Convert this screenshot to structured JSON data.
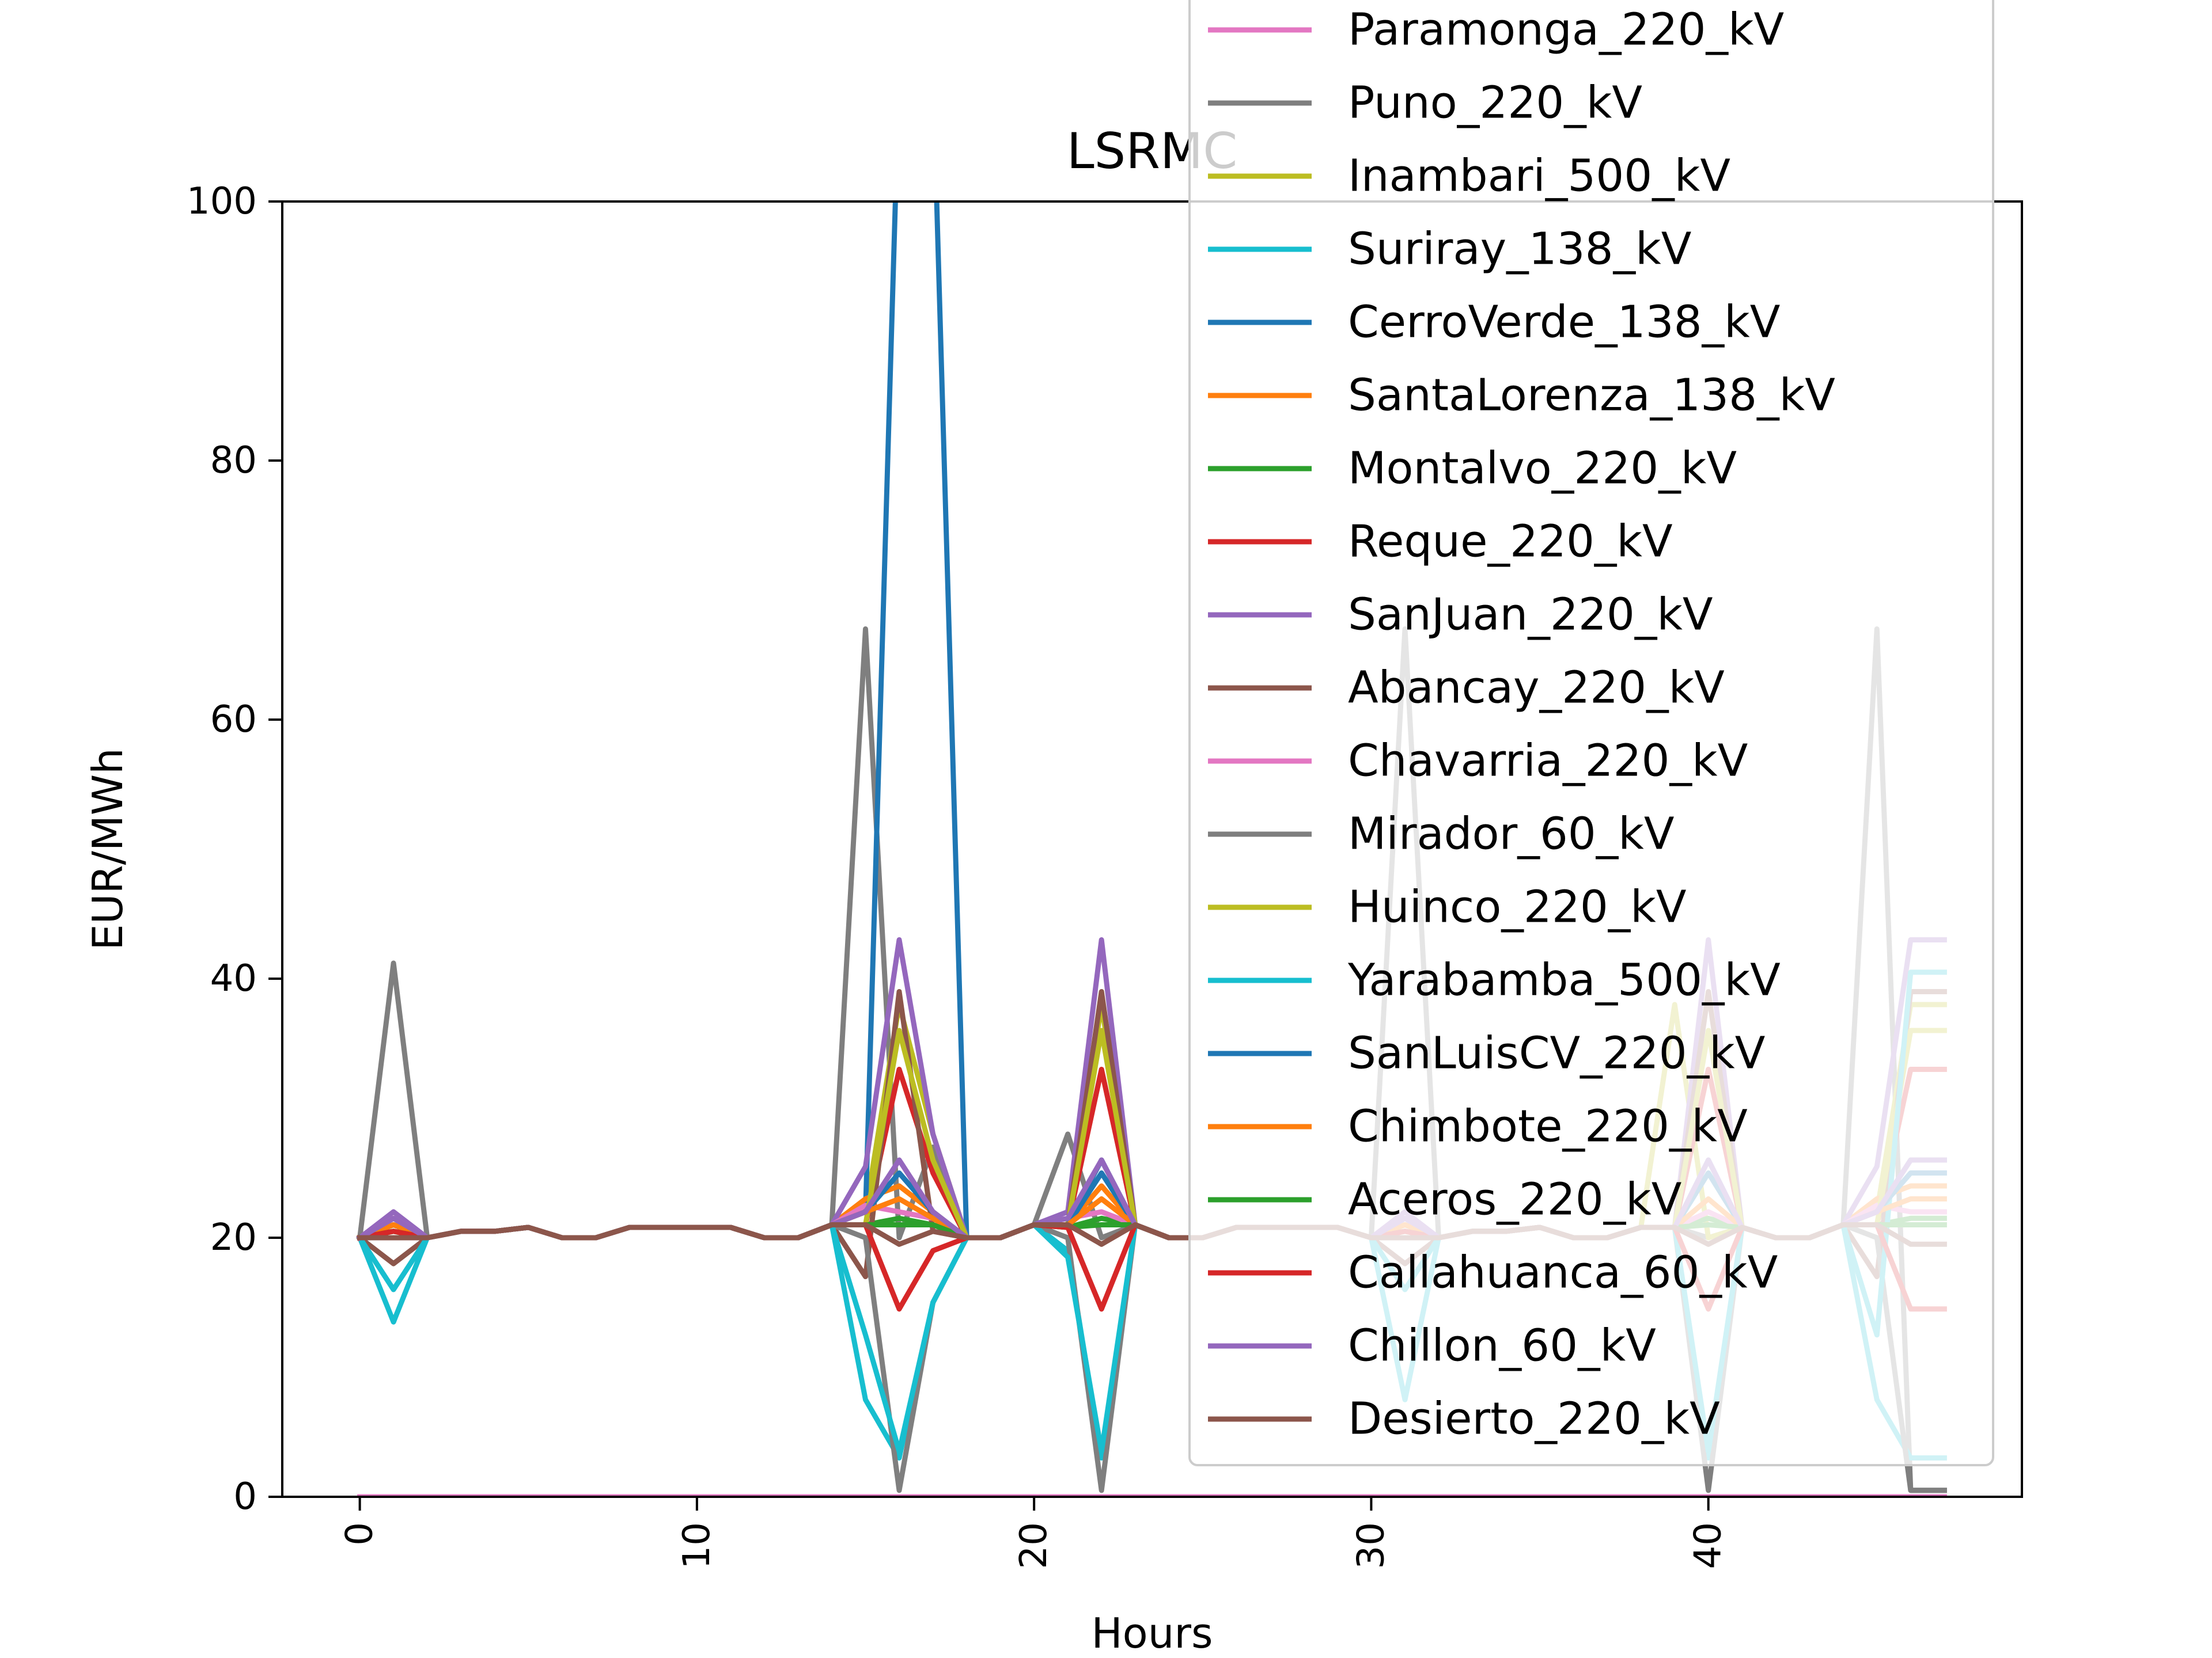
{
  "chart_data": {
    "type": "line",
    "title": "LSRMC",
    "xlabel": "Hours",
    "ylabel": "EUR/MWh",
    "xlim": [
      -2.3,
      49.3
    ],
    "ylim": [
      0,
      100
    ],
    "xticks": [
      0,
      10,
      20,
      30,
      40
    ],
    "yticks": [
      0,
      20,
      40,
      60,
      80,
      100
    ],
    "grid": false,
    "legend_position": "top-right",
    "x": [
      0,
      1,
      2,
      3,
      4,
      5,
      6,
      7,
      8,
      9,
      10,
      11,
      12,
      13,
      14,
      15,
      16,
      17,
      18,
      19,
      20,
      21,
      22,
      23,
      24,
      25,
      26,
      27,
      28,
      29,
      30,
      31,
      32,
      33,
      34,
      35,
      36,
      37,
      38,
      39,
      40,
      41,
      42,
      43,
      44,
      45,
      46,
      47
    ],
    "series": [
      {
        "name": "Paramonga_220_kV",
        "color": "#e377c2",
        "values": [
          0,
          0,
          0,
          0,
          0,
          0,
          0,
          0,
          0,
          0,
          0,
          0,
          0,
          0,
          0,
          0,
          0,
          0,
          0,
          0,
          0,
          0,
          0,
          0,
          0,
          0,
          0,
          0,
          0,
          0,
          0,
          0,
          0,
          0,
          0,
          0,
          0,
          0,
          0,
          0,
          0,
          0,
          0,
          0,
          0,
          0,
          0,
          0
        ]
      },
      {
        "name": "Puno_220_kV",
        "color": "#7f7f7f",
        "values": [
          20,
          41.2,
          20,
          20.5,
          20.5,
          20.8,
          20,
          20,
          20.8,
          20.8,
          20.8,
          20.8,
          20,
          20,
          21,
          67,
          20,
          27,
          20,
          20,
          21,
          28,
          20,
          21,
          20,
          20,
          20.8,
          20.8,
          20.8,
          20.8,
          20,
          67,
          20,
          20.5,
          20.5,
          20.8,
          20,
          20,
          20.8,
          20.8,
          20,
          20.8,
          20,
          20,
          21,
          67,
          0.5,
          0.5
        ]
      },
      {
        "name": "Inambari_500_kV",
        "color": "#bcbd22",
        "values": [
          20,
          21,
          20,
          20.5,
          20.5,
          20.8,
          20,
          20,
          20.8,
          20.8,
          20.8,
          20.8,
          20,
          20,
          21,
          22,
          38,
          28,
          20,
          20,
          21,
          21,
          38,
          21,
          20,
          20,
          20.8,
          20.8,
          20.8,
          20.8,
          20,
          21,
          20,
          20.5,
          20.5,
          20.8,
          20,
          20,
          20.8,
          38,
          20,
          20.8,
          20,
          20,
          21,
          22,
          38,
          38
        ]
      },
      {
        "name": "Suriray_138_kV",
        "color": "#17becf",
        "values": [
          20,
          13.5,
          20,
          20.5,
          20.5,
          20.8,
          20,
          20,
          20.8,
          20.8,
          20.8,
          20.8,
          20,
          20,
          21,
          7.5,
          3,
          15,
          20,
          20,
          21,
          19,
          3,
          21,
          20,
          20,
          20.8,
          20.8,
          20.8,
          20.8,
          20,
          7.5,
          20,
          20.5,
          20.5,
          20.8,
          20,
          20,
          20.8,
          20.8,
          3,
          20.8,
          20,
          20,
          21,
          7.5,
          3,
          3
        ]
      },
      {
        "name": "CerroVerde_138_kV",
        "color": "#1f77b4",
        "values": [
          20,
          21,
          20,
          20.5,
          20.5,
          20.8,
          20,
          20,
          20.8,
          20.8,
          20.8,
          20.8,
          20,
          20,
          21,
          22,
          110,
          110,
          20,
          20,
          21,
          21,
          26,
          21,
          20,
          20,
          20.8,
          20.8,
          20.8,
          20.8,
          20,
          21,
          20,
          20.5,
          20.5,
          20.8,
          20,
          20,
          20.8,
          20.8,
          26,
          20.8,
          20,
          20,
          21,
          22,
          26,
          26
        ]
      },
      {
        "name": "SantaLorenza_138_kV",
        "color": "#ff7f0e",
        "values": [
          20,
          21,
          20,
          20.5,
          20.5,
          20.8,
          20,
          20,
          20.8,
          20.8,
          20.8,
          20.8,
          20,
          20,
          21,
          23,
          24,
          22,
          20,
          20,
          21,
          21,
          24,
          21,
          20,
          20,
          20.8,
          20.8,
          20.8,
          20.8,
          20,
          21,
          20,
          20.5,
          20.5,
          20.8,
          20,
          20,
          20.8,
          20.8,
          33,
          20.8,
          20,
          20,
          21,
          23,
          24,
          24
        ]
      },
      {
        "name": "Montalvo_220_kV",
        "color": "#2ca02c",
        "values": [
          20,
          20.5,
          20,
          20.5,
          20.5,
          20.8,
          20,
          20,
          20.8,
          20.8,
          20.8,
          20.8,
          20,
          20,
          21,
          21,
          21.5,
          21,
          20,
          20,
          21,
          20.8,
          21.5,
          21,
          20,
          20,
          20.8,
          20.8,
          20.8,
          20.8,
          20,
          20.5,
          20,
          20.5,
          20.5,
          20.8,
          20,
          20,
          20.8,
          20.8,
          21.5,
          20.8,
          20,
          20,
          21,
          21,
          21.5,
          21.5
        ]
      },
      {
        "name": "Reque_220_kV",
        "color": "#d62728",
        "values": [
          20,
          20,
          20,
          20.5,
          20.5,
          20.8,
          20,
          20,
          20.8,
          20.8,
          20.8,
          20.8,
          20,
          20,
          21,
          21,
          33,
          25,
          20,
          20,
          21,
          21,
          33,
          21,
          20,
          20,
          20.8,
          20.8,
          20.8,
          20.8,
          20,
          20,
          20,
          20.5,
          20.5,
          20.8,
          20,
          20,
          20.8,
          20.8,
          33,
          20.8,
          20,
          20,
          21,
          21,
          33,
          33
        ]
      },
      {
        "name": "SanJuan_220_kV",
        "color": "#9467bd",
        "values": [
          20,
          22,
          20,
          20.5,
          20.5,
          20.8,
          20,
          20,
          20.8,
          20.8,
          20.8,
          20.8,
          20,
          20,
          21,
          25.5,
          43,
          28,
          20,
          20,
          21,
          22,
          43,
          21,
          20,
          20,
          20.8,
          20.8,
          20.8,
          20.8,
          20,
          22,
          20,
          20.5,
          20.5,
          20.8,
          20,
          20,
          20.8,
          20.8,
          43,
          20.8,
          20,
          20,
          21,
          25.5,
          43,
          43
        ]
      },
      {
        "name": "Abancay_220_kV",
        "color": "#8c564b",
        "values": [
          20,
          18,
          20,
          20.5,
          20.5,
          20.8,
          20,
          20,
          20.8,
          20.8,
          20.8,
          20.8,
          20,
          20,
          21,
          17,
          39,
          20.5,
          20,
          20,
          21,
          21,
          39,
          21,
          20,
          20,
          20.8,
          20.8,
          20.8,
          20.8,
          20,
          18,
          20,
          20.5,
          20.5,
          20.8,
          20,
          20,
          20.8,
          20.8,
          39,
          20.8,
          20,
          20,
          21,
          17,
          39,
          39
        ]
      },
      {
        "name": "Chavarria_220_kV",
        "color": "#e377c2",
        "values": [
          20,
          21.5,
          20,
          20.5,
          20.5,
          20.8,
          20,
          20,
          20.8,
          20.8,
          20.8,
          20.8,
          20,
          20,
          21,
          22.5,
          22,
          21.5,
          20,
          20,
          21,
          21.5,
          22,
          21,
          20,
          20,
          20.8,
          20.8,
          20.8,
          20.8,
          20,
          21.5,
          20,
          20.5,
          20.5,
          20.8,
          20,
          20,
          20.8,
          20.8,
          22,
          20.8,
          20,
          20,
          21,
          22.5,
          22,
          22
        ]
      },
      {
        "name": "Mirador_60_kV",
        "color": "#7f7f7f",
        "values": [
          20,
          21,
          20,
          20.5,
          20.5,
          20.8,
          20,
          20,
          20.8,
          20.8,
          20.8,
          20.8,
          20,
          20,
          21,
          20,
          0.5,
          15,
          20,
          20,
          21,
          20,
          0.5,
          21,
          20,
          20,
          20.8,
          20.8,
          20.8,
          20.8,
          20,
          20,
          20,
          20.5,
          20.5,
          20.8,
          20,
          20,
          20.8,
          20.8,
          0.5,
          20.8,
          20,
          20,
          21,
          20,
          0.5,
          0.5
        ]
      },
      {
        "name": "Huinco_220_kV",
        "color": "#bcbd22",
        "values": [
          20,
          20.5,
          20,
          20.5,
          20.5,
          20.8,
          20,
          20,
          20.8,
          20.8,
          20.8,
          20.8,
          20,
          20,
          21,
          21,
          36,
          26,
          20,
          20,
          21,
          21,
          36,
          21,
          20,
          20,
          20.8,
          20.8,
          20.8,
          20.8,
          20,
          20.5,
          20,
          20.5,
          20.5,
          20.8,
          20,
          20,
          20.8,
          20.8,
          36,
          20.8,
          20,
          20,
          21,
          21,
          36,
          36
        ]
      },
      {
        "name": "Yarabamba_500_kV",
        "color": "#17becf",
        "values": [
          20,
          16,
          20,
          20.5,
          20.5,
          20.8,
          20,
          20,
          20.8,
          20.8,
          20.8,
          20.8,
          20,
          20,
          21,
          12.5,
          3.5,
          15,
          20,
          20,
          21,
          18.5,
          3.5,
          21,
          20,
          20,
          20.8,
          20.8,
          20.8,
          20.8,
          20,
          16,
          20,
          20.5,
          20.5,
          20.8,
          20,
          20,
          20.8,
          20.8,
          3.5,
          20.8,
          20,
          20,
          21,
          12.5,
          40.5,
          40.5
        ]
      },
      {
        "name": "SanLuisCV_220_kV",
        "color": "#1f77b4",
        "values": [
          20,
          21,
          20,
          20.5,
          20.5,
          20.8,
          20,
          20,
          20.8,
          20.8,
          20.8,
          20.8,
          20,
          20,
          21,
          22,
          25,
          22,
          20,
          20,
          21,
          21,
          25,
          21,
          20,
          20,
          20.8,
          20.8,
          20.8,
          20.8,
          20,
          21,
          20,
          20.5,
          20.5,
          20.8,
          20,
          20,
          20.8,
          20.8,
          25,
          20.8,
          20,
          20,
          21,
          22,
          25,
          25
        ]
      },
      {
        "name": "Chimbote_220_kV",
        "color": "#ff7f0e",
        "values": [
          20,
          21,
          20,
          20.5,
          20.5,
          20.8,
          20,
          20,
          20.8,
          20.8,
          20.8,
          20.8,
          20,
          20,
          21,
          22,
          23,
          21.5,
          20,
          20,
          21,
          21,
          23,
          21,
          20,
          20,
          20.8,
          20.8,
          20.8,
          20.8,
          20,
          21,
          20,
          20.5,
          20.5,
          20.8,
          20,
          20,
          20.8,
          20.8,
          23,
          20.8,
          20,
          20,
          21,
          22,
          23,
          23
        ]
      },
      {
        "name": "Aceros_220_kV",
        "color": "#2ca02c",
        "values": [
          20,
          20.5,
          20,
          20.5,
          20.5,
          20.8,
          20,
          20,
          20.8,
          20.8,
          20.8,
          20.8,
          20,
          20,
          21,
          21,
          21,
          21,
          20,
          20,
          21,
          20.8,
          21,
          21,
          20,
          20,
          20.8,
          20.8,
          20.8,
          20.8,
          20,
          20.5,
          20,
          20.5,
          20.5,
          20.8,
          20,
          20,
          20.8,
          20.8,
          21,
          20.8,
          20,
          20,
          21,
          21,
          21,
          21
        ]
      },
      {
        "name": "Callahuanca_60_kV",
        "color": "#d62728",
        "values": [
          20,
          20.5,
          20,
          20.5,
          20.5,
          20.8,
          20,
          20,
          20.8,
          20.8,
          20.8,
          20.8,
          20,
          20,
          21,
          21,
          14.5,
          19,
          20,
          20,
          21,
          20.8,
          14.5,
          21,
          20,
          20,
          20.8,
          20.8,
          20.8,
          20.8,
          20,
          20.5,
          20,
          20.5,
          20.5,
          20.8,
          20,
          20,
          20.8,
          20.8,
          14.5,
          20.8,
          20,
          20,
          21,
          21,
          14.5,
          14.5
        ]
      },
      {
        "name": "Chillon_60_kV",
        "color": "#9467bd",
        "values": [
          20,
          21.5,
          20,
          20.5,
          20.5,
          20.8,
          20,
          20,
          20.8,
          20.8,
          20.8,
          20.8,
          20,
          20,
          21,
          22,
          26,
          22,
          20,
          20,
          21,
          21.5,
          26,
          21,
          20,
          20,
          20.8,
          20.8,
          20.8,
          20.8,
          20,
          21.5,
          20,
          20.5,
          20.5,
          20.8,
          20,
          20,
          20.8,
          20.8,
          26,
          20.8,
          20,
          20,
          21,
          22,
          26,
          26
        ]
      },
      {
        "name": "Desierto_220_kV",
        "color": "#8c564b",
        "values": [
          20,
          20,
          20,
          20.5,
          20.5,
          20.8,
          20,
          20,
          20.8,
          20.8,
          20.8,
          20.8,
          20,
          20,
          21,
          21,
          19.5,
          20.5,
          20,
          20,
          21,
          21,
          19.5,
          21,
          20,
          20,
          20.8,
          20.8,
          20.8,
          20.8,
          20,
          20,
          20,
          20.5,
          20.5,
          20.8,
          20,
          20,
          20.8,
          20.8,
          19.5,
          20.8,
          20,
          20,
          21,
          21,
          19.5,
          19.5
        ]
      }
    ]
  }
}
